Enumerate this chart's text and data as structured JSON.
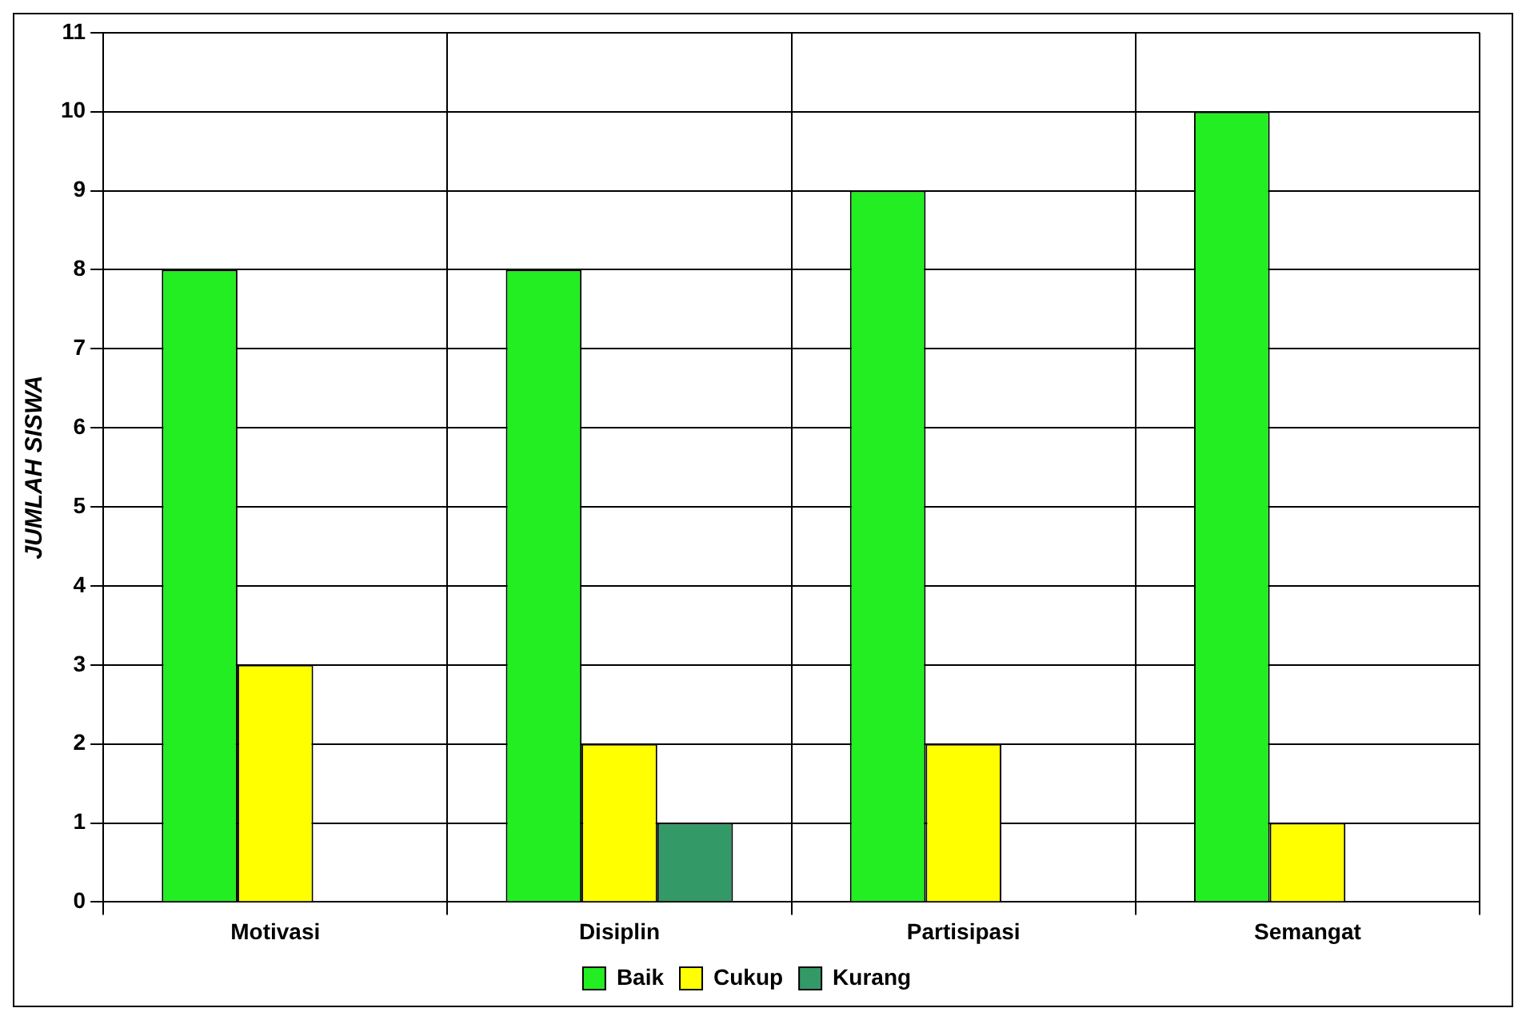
{
  "chart_data": {
    "type": "bar",
    "ylabel": "JUMLAH SISWA",
    "categories": [
      "Motivasi",
      "Disiplin",
      "Partisipasi",
      "Semangat"
    ],
    "series": [
      {
        "name": "Baik",
        "color": "#22ee22",
        "values": [
          8,
          8,
          9,
          10
        ]
      },
      {
        "name": "Cukup",
        "color": "#ffff00",
        "values": [
          3,
          2,
          2,
          1
        ]
      },
      {
        "name": "Kurang",
        "color": "#339966",
        "values": [
          0,
          1,
          0,
          0
        ]
      }
    ],
    "ylim": [
      0,
      11
    ],
    "yticks": [
      0,
      1,
      2,
      3,
      4,
      5,
      6,
      7,
      8,
      9,
      10,
      11
    ],
    "grid": true,
    "legend": "bottom"
  }
}
